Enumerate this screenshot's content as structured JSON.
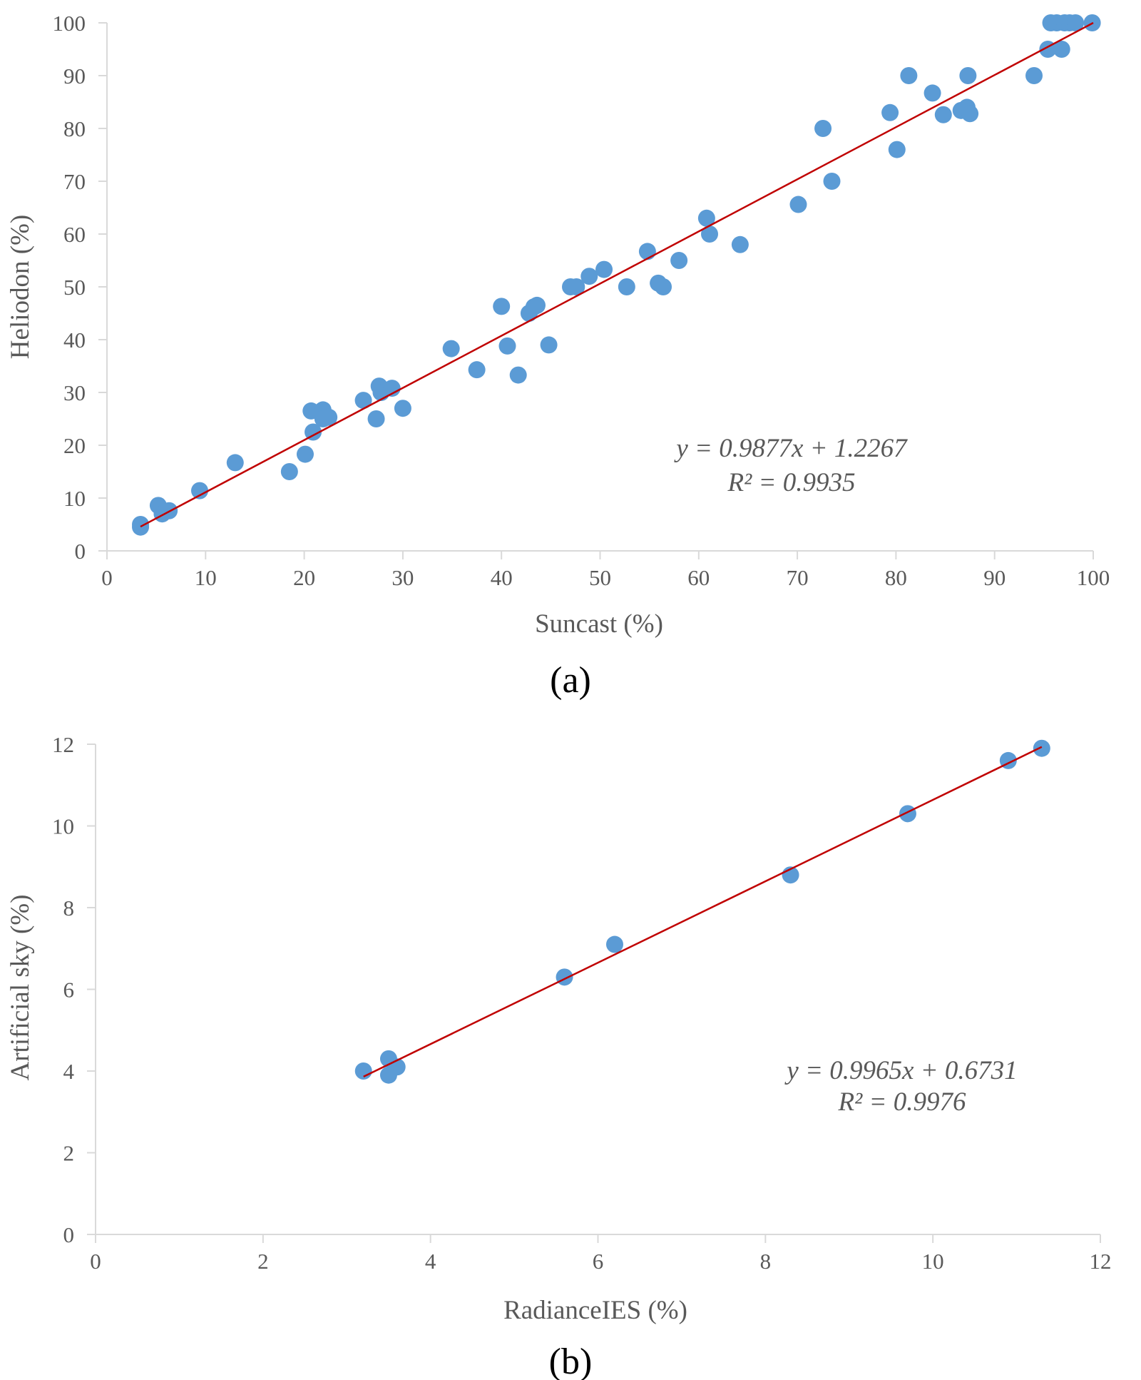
{
  "chart_data": [
    {
      "type": "scatter",
      "panel_label": "(a)",
      "xlabel": "Suncast (%)",
      "ylabel": "Heliodon (%)",
      "xlim": [
        0,
        100
      ],
      "ylim": [
        0,
        100
      ],
      "xticks": [
        "0",
        "10",
        "20",
        "30",
        "40",
        "50",
        "60",
        "70",
        "80",
        "90",
        "100"
      ],
      "yticks": [
        "0",
        "10",
        "20",
        "30",
        "40",
        "50",
        "60",
        "70",
        "80",
        "90",
        "100"
      ],
      "grid": false,
      "marker_color": "#5B9BD5",
      "trendline_color": "#C00000",
      "trendline": {
        "slope": 0.9877,
        "intercept": 1.2267,
        "x_range": [
          3.4,
          100
        ]
      },
      "equation_lines": [
        "y = 0.9877x + 1.2267",
        "R² = 0.9935"
      ],
      "points": [
        [
          3.4,
          5
        ],
        [
          3.4,
          4.5
        ],
        [
          5.2,
          8.6
        ],
        [
          5.6,
          7
        ],
        [
          6.3,
          7.6
        ],
        [
          9.4,
          11.4
        ],
        [
          13,
          16.7
        ],
        [
          18.5,
          15
        ],
        [
          20.1,
          18.3
        ],
        [
          20.7,
          26.5
        ],
        [
          20.9,
          22.5
        ],
        [
          21.9,
          26.7
        ],
        [
          21.9,
          25
        ],
        [
          22.5,
          25.3
        ],
        [
          26,
          28.5
        ],
        [
          27.3,
          25
        ],
        [
          27.6,
          31.2
        ],
        [
          27.8,
          30
        ],
        [
          28.9,
          30.8
        ],
        [
          30,
          27
        ],
        [
          34.9,
          38.3
        ],
        [
          37.5,
          34.3
        ],
        [
          40,
          46.3
        ],
        [
          40.6,
          38.8
        ],
        [
          41.7,
          33.3
        ],
        [
          42.8,
          45
        ],
        [
          43.6,
          46.5
        ],
        [
          43.3,
          46.2
        ],
        [
          44.8,
          39
        ],
        [
          47,
          50
        ],
        [
          47.6,
          50
        ],
        [
          48.9,
          52
        ],
        [
          50.4,
          53.3
        ],
        [
          52.7,
          50
        ],
        [
          54.8,
          56.7
        ],
        [
          55.9,
          50.7
        ],
        [
          56.4,
          50
        ],
        [
          58,
          55
        ],
        [
          60.8,
          63
        ],
        [
          61.1,
          60
        ],
        [
          64.2,
          58
        ],
        [
          70.1,
          65.6
        ],
        [
          72.6,
          80
        ],
        [
          73.5,
          70
        ],
        [
          79.4,
          83
        ],
        [
          80.1,
          76
        ],
        [
          81.3,
          90
        ],
        [
          83.7,
          86.7
        ],
        [
          84.8,
          82.6
        ],
        [
          86.6,
          83.4
        ],
        [
          87.2,
          84
        ],
        [
          87.3,
          90
        ],
        [
          87.5,
          82.8
        ],
        [
          94,
          90
        ],
        [
          95.4,
          95
        ],
        [
          95.7,
          100
        ],
        [
          96.3,
          100
        ],
        [
          96.8,
          95
        ],
        [
          97.1,
          100
        ],
        [
          97.6,
          100
        ],
        [
          98.2,
          100
        ],
        [
          99.9,
          100
        ]
      ]
    },
    {
      "type": "scatter",
      "panel_label": "(b)",
      "xlabel": "RadianceIES (%)",
      "ylabel": "Artificial sky (%)",
      "xlim": [
        0,
        12
      ],
      "ylim": [
        0,
        12
      ],
      "xticks": [
        "0",
        "2",
        "4",
        "6",
        "8",
        "10",
        "12"
      ],
      "yticks": [
        "0",
        "2",
        "4",
        "6",
        "8",
        "10",
        "12"
      ],
      "grid": false,
      "marker_color": "#5B9BD5",
      "trendline_color": "#C00000",
      "trendline": {
        "slope": 0.9965,
        "intercept": 0.6731,
        "x_range": [
          3.2,
          11.3
        ]
      },
      "equation_lines": [
        "y = 0.9965x + 0.6731",
        "R² = 0.9976"
      ],
      "points": [
        [
          3.2,
          4
        ],
        [
          3.5,
          4.3
        ],
        [
          3.5,
          3.9
        ],
        [
          3.6,
          4.1
        ],
        [
          5.6,
          6.3
        ],
        [
          6.2,
          7.1
        ],
        [
          8.3,
          8.8
        ],
        [
          9.7,
          10.3
        ],
        [
          10.9,
          11.6
        ],
        [
          11.3,
          11.9
        ]
      ]
    }
  ]
}
